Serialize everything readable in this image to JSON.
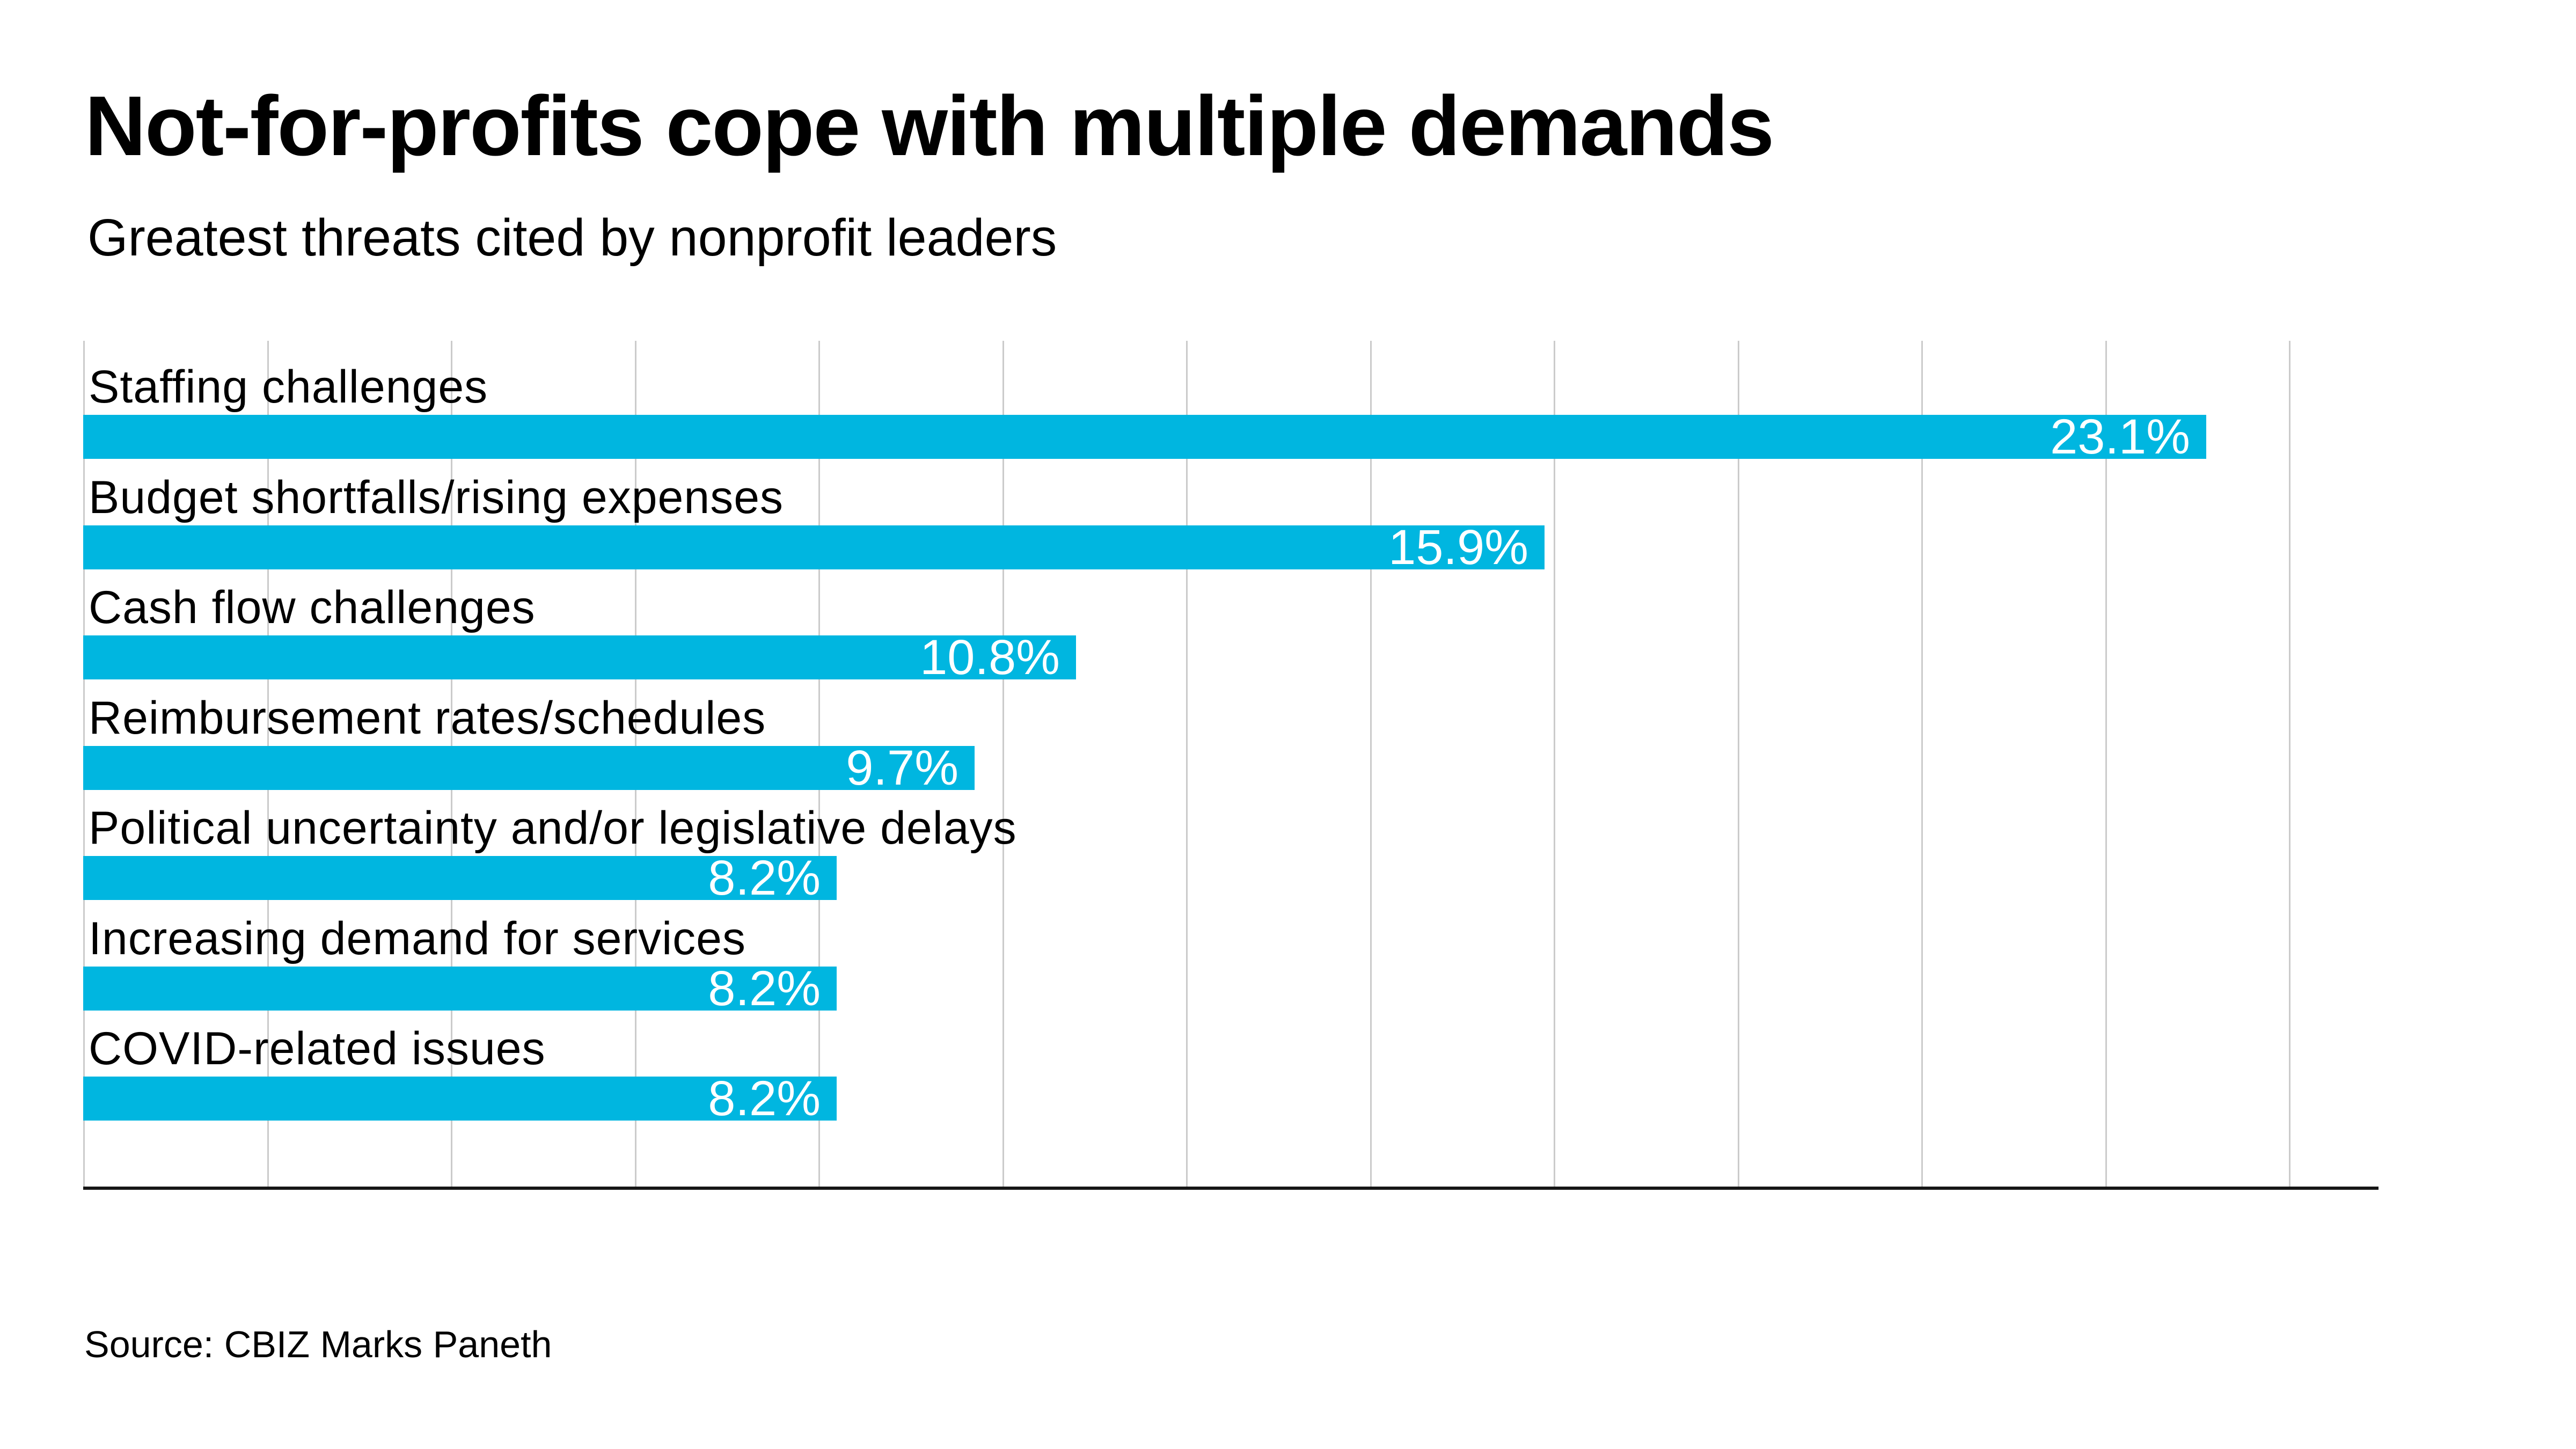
{
  "colors": {
    "background": "#ffffff",
    "text": "#000000",
    "bar": "#00b6e0",
    "gridline": "#cbcbcb",
    "axis": "#161616",
    "value_label": "#ffffff"
  },
  "chart_data": {
    "type": "bar",
    "orientation": "horizontal",
    "title": "Not-for-profits cope with multiple demands",
    "subtitle": "Greatest threats cited by nonprofit leaders",
    "source": "Source: CBIZ Marks Paneth",
    "categories": [
      "Staffing challenges",
      "Budget shortfalls/rising expenses",
      "Cash flow challenges",
      "Reimbursement rates/schedules",
      "Political uncertainty and/or legislative delays",
      "Increasing demand for services",
      "COVID-related issues"
    ],
    "values": [
      23.1,
      15.9,
      10.8,
      9.7,
      8.2,
      8.2,
      8.2
    ],
    "value_labels": [
      "23.1%",
      "15.9%",
      "10.8%",
      "9.7%",
      "8.2%",
      "8.2%",
      "8.2%"
    ],
    "unit": "%",
    "xlim": [
      0,
      25
    ],
    "gridlines_percent": [
      0,
      2,
      4,
      6,
      8,
      10,
      12,
      14,
      16,
      18,
      20,
      22,
      24
    ],
    "grid": "vertical",
    "legend": "none",
    "value_label_position": "inside-end",
    "xlabel": "",
    "ylabel": ""
  }
}
